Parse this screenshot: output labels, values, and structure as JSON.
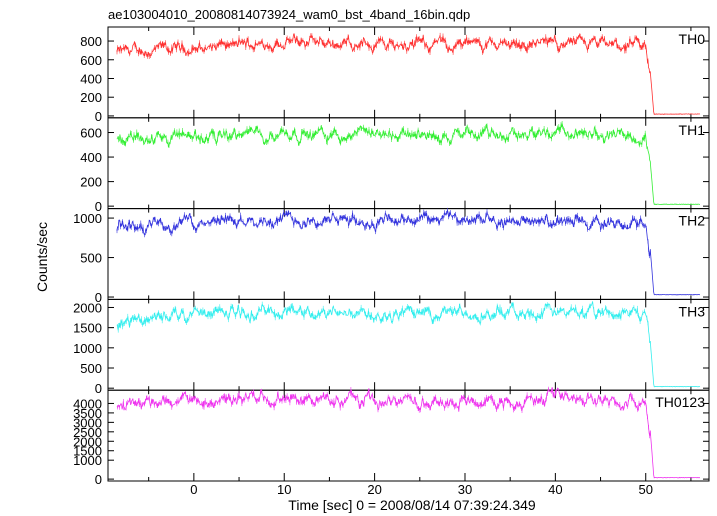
{
  "chart_data": {
    "type": "line",
    "title": "ae103004010_20080814073924_wam0_bst_4band_16bin.qdp",
    "xlabel": "Time [sec] 0 = 2008/08/14 07:39:24.349",
    "ylabel": "Counts/sec",
    "xlim": [
      -9.5,
      57
    ],
    "xticks": [
      0,
      10,
      20,
      30,
      40,
      50
    ],
    "grid": false,
    "dropoff_time": 50.5,
    "panels": [
      {
        "name": "TH0",
        "color": "#ff3030",
        "ylim": [
          -20,
          950
        ],
        "yticks": [
          0,
          200,
          400,
          600,
          800
        ],
        "level": 760,
        "after": 20,
        "x_sample": [
          -8.5,
          0,
          10,
          20,
          30,
          40,
          50,
          51,
          56
        ],
        "y_sample": [
          680,
          720,
          790,
          770,
          760,
          780,
          730,
          25,
          20
        ]
      },
      {
        "name": "TH1",
        "color": "#33ee33",
        "ylim": [
          -20,
          720
        ],
        "yticks": [
          0,
          200,
          400,
          600
        ],
        "level": 580,
        "after": 15,
        "x_sample": [
          -8.5,
          0,
          10,
          20,
          30,
          40,
          50,
          51,
          56
        ],
        "y_sample": [
          560,
          570,
          600,
          590,
          580,
          600,
          560,
          15,
          15
        ]
      },
      {
        "name": "TH2",
        "color": "#3333dd",
        "ylim": [
          -30,
          1120
        ],
        "yticks": [
          0,
          500,
          1000
        ],
        "level": 960,
        "after": 30,
        "x_sample": [
          -8.5,
          0,
          10,
          20,
          30,
          40,
          50,
          51,
          56
        ],
        "y_sample": [
          880,
          950,
          980,
          960,
          970,
          950,
          950,
          30,
          30
        ]
      },
      {
        "name": "TH3",
        "color": "#33eeee",
        "ylim": [
          -50,
          2200
        ],
        "yticks": [
          0,
          500,
          1000,
          1500,
          2000
        ],
        "level": 1880,
        "after": 40,
        "x_sample": [
          -8.5,
          0,
          10,
          20,
          30,
          40,
          50,
          51,
          56
        ],
        "y_sample": [
          1650,
          1880,
          1900,
          1880,
          1870,
          1880,
          1850,
          40,
          40
        ]
      },
      {
        "name": "TH0123",
        "color": "#ee33ee",
        "ylim": [
          -100,
          4700
        ],
        "yticks": [
          0,
          1000,
          1500,
          2000,
          2500,
          3000,
          3500,
          4000
        ],
        "level": 4150,
        "after": 80,
        "x_sample": [
          -8.5,
          0,
          10,
          20,
          30,
          40,
          50,
          51,
          56
        ],
        "y_sample": [
          3850,
          4150,
          4200,
          4150,
          4150,
          4200,
          4100,
          80,
          80
        ]
      }
    ]
  }
}
